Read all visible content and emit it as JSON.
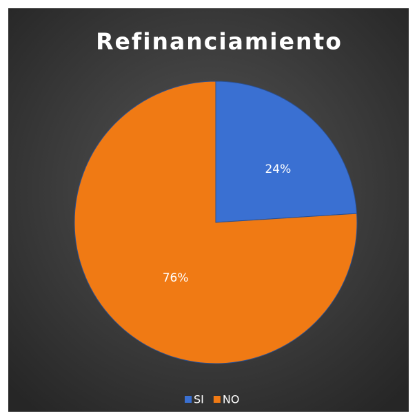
{
  "chart_data": {
    "type": "pie",
    "title": "Refinanciamiento",
    "categories": [
      "SI",
      "NO"
    ],
    "values": [
      24,
      76
    ],
    "value_labels": [
      "24%",
      "76%"
    ],
    "colors": [
      "#3a70d2",
      "#f07a14"
    ],
    "legend": "bottom"
  }
}
